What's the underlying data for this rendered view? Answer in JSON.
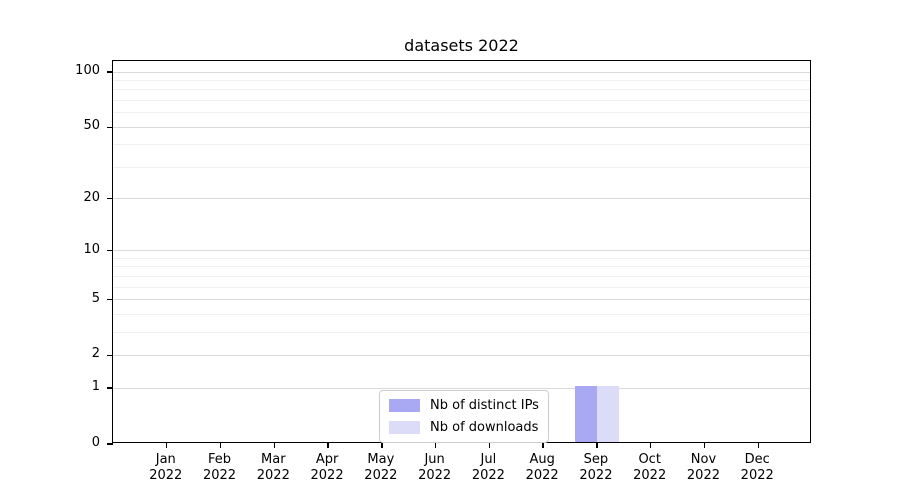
{
  "chart_data": {
    "type": "bar",
    "title": "datasets 2022",
    "categories": [
      [
        "Jan",
        "2022"
      ],
      [
        "Feb",
        "2022"
      ],
      [
        "Mar",
        "2022"
      ],
      [
        "Apr",
        "2022"
      ],
      [
        "May",
        "2022"
      ],
      [
        "Jun",
        "2022"
      ],
      [
        "Jul",
        "2022"
      ],
      [
        "Aug",
        "2022"
      ],
      [
        "Sep",
        "2022"
      ],
      [
        "Oct",
        "2022"
      ],
      [
        "Nov",
        "2022"
      ],
      [
        "Dec",
        "2022"
      ]
    ],
    "series": [
      {
        "name": "Nb of distinct IPs",
        "color": "#a9a9f3",
        "values": [
          0,
          0,
          0,
          0,
          0,
          0,
          0,
          0,
          1,
          0,
          0,
          0
        ]
      },
      {
        "name": "Nb of downloads",
        "color": "#dcdcf8",
        "values": [
          0,
          0,
          0,
          0,
          0,
          0,
          0,
          0,
          1,
          0,
          0,
          0
        ]
      }
    ],
    "xlabel": "",
    "ylabel": "",
    "y_scale": "log1p",
    "y_max": 115,
    "y_ticks": [
      0,
      1,
      2,
      5,
      10,
      20,
      50,
      100
    ],
    "y_minor_gridlines": [
      3,
      4,
      6,
      7,
      8,
      9,
      30,
      40,
      60,
      70,
      80,
      90
    ],
    "grid": true,
    "legend_position": "lower center",
    "colors": {
      "major_grid": "#d9d9d9",
      "minor_grid": "#f0f0f0",
      "axis": "#000000",
      "background": "#ffffff"
    }
  }
}
